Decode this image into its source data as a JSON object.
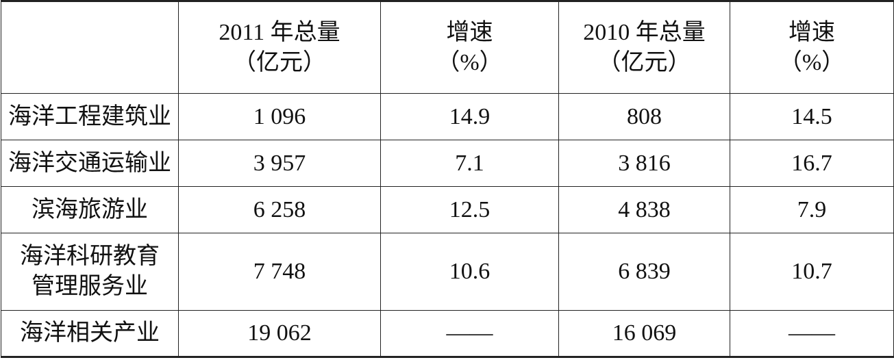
{
  "table": {
    "header": [
      [
        "2011 年总量",
        "（亿元）"
      ],
      [
        "增速",
        "（%）"
      ],
      [
        "2010 年总量",
        "（亿元）"
      ],
      [
        "增速",
        "（%）"
      ]
    ],
    "rows": [
      [
        [
          "海洋工程建筑业"
        ],
        "1 096",
        "14.9",
        "808",
        "14.5"
      ],
      [
        [
          "海洋交通运输业"
        ],
        "3 957",
        "7.1",
        "3 816",
        "16.7"
      ],
      [
        [
          "滨海旅游业"
        ],
        "6 258",
        "12.5",
        "4 838",
        "7.9"
      ],
      [
        [
          "海洋科研教育",
          "管理服务业"
        ],
        "7 748",
        "10.6",
        "6 839",
        "10.7"
      ],
      [
        [
          "海洋相关产业"
        ],
        "19 062",
        "——",
        "16 069",
        "——"
      ]
    ]
  }
}
